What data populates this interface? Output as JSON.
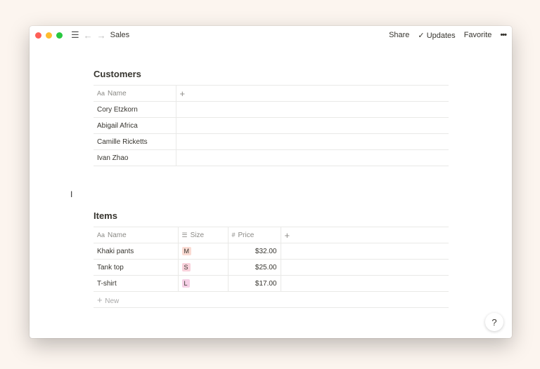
{
  "window": {
    "title": "Sales",
    "share": "Share",
    "updates": "Updates",
    "favorite": "Favorite",
    "more": "•••",
    "help": "?"
  },
  "colors": {
    "close": "#fe5f57",
    "minimize": "#febc2e",
    "maximize": "#28c840"
  },
  "customers": {
    "title": "Customers",
    "header": {
      "name": "Name",
      "add": "+"
    },
    "rows": [
      "Cory Etzkorn",
      "Abigail Africa",
      "Camille Ricketts",
      "Ivan Zhao"
    ]
  },
  "items": {
    "title": "Items",
    "header": {
      "name": "Name",
      "size": "Size",
      "price": "Price",
      "add": "+"
    },
    "rows": [
      {
        "name": "Khaki pants",
        "size": "M",
        "size_color": "#fadbd3",
        "price": "$32.00"
      },
      {
        "name": "Tank top",
        "size": "S",
        "size_color": "#f9d2dc",
        "price": "$25.00"
      },
      {
        "name": "T-shirt",
        "size": "L",
        "size_color": "#f5d0e6",
        "price": "$17.00"
      }
    ],
    "new": "New"
  }
}
